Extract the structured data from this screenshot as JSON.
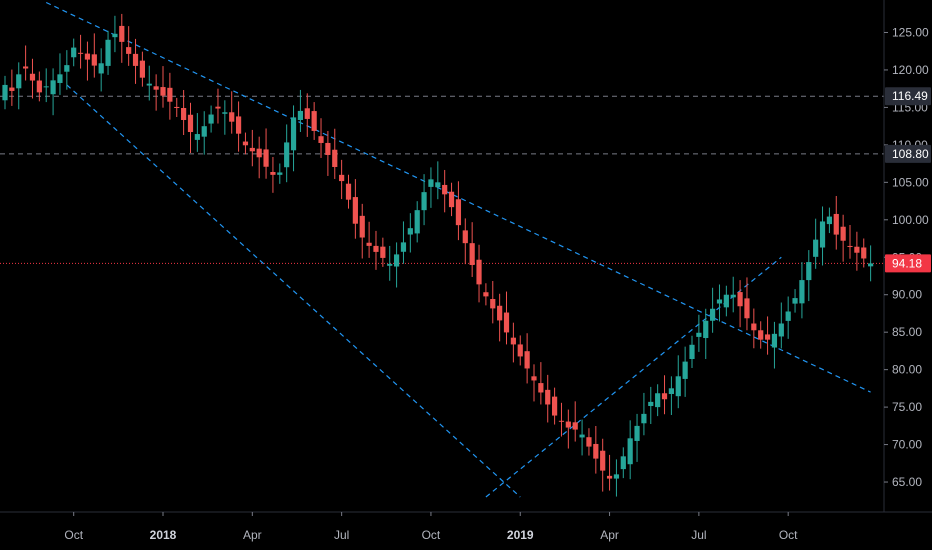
{
  "colors": {
    "background": "#000000",
    "up": "#26a69a",
    "down": "#ef5350",
    "trendline": "#2196f3",
    "level_line": "#787b86",
    "current_price_line": "#f23645",
    "axis_text": "#b2b5be"
  },
  "chart_data": {
    "type": "candlestick",
    "title": "",
    "xlabel": "",
    "ylabel": "",
    "ylim": [
      61,
      128
    ],
    "grid": false,
    "price_axis_ticks": [
      "65.00",
      "70.00",
      "75.00",
      "80.00",
      "85.00",
      "90.00",
      "95.00",
      "100.00",
      "105.00",
      "110.00",
      "115.00",
      "120.00",
      "125.00"
    ],
    "time_axis_ticks": [
      {
        "label": "Oct",
        "week": 11,
        "bold": false
      },
      {
        "label": "2018",
        "week": 24,
        "bold": true
      },
      {
        "label": "Apr",
        "week": 37,
        "bold": false
      },
      {
        "label": "Jul",
        "week": 50,
        "bold": false
      },
      {
        "label": "Oct",
        "week": 63,
        "bold": false
      },
      {
        "label": "2019",
        "week": 76,
        "bold": true
      },
      {
        "label": "Apr",
        "week": 89,
        "bold": false
      },
      {
        "label": "Jul",
        "week": 102,
        "bold": false
      },
      {
        "label": "Oct",
        "week": 115,
        "bold": false
      }
    ],
    "horizontal_levels": [
      {
        "value": 116.49,
        "label": "116.49"
      },
      {
        "value": 108.8,
        "label": "108.80"
      }
    ],
    "current_price": {
      "value": 94.18,
      "label": "94.18"
    },
    "trendlines": [
      {
        "from": [
          7,
          129
        ],
        "to": [
          127,
          77
        ]
      },
      {
        "from": [
          10,
          118
        ],
        "to": [
          76,
          63
        ]
      },
      {
        "from": [
          71,
          63
        ],
        "to": [
          114,
          95
        ]
      }
    ],
    "close_series": [
      118,
      117,
      121,
      119,
      117,
      118,
      119,
      120,
      123,
      122,
      121,
      120,
      124,
      125,
      123,
      121,
      119,
      118,
      117,
      116,
      115,
      113,
      111,
      112,
      114,
      115,
      114,
      112,
      110,
      109,
      108,
      106,
      106,
      111,
      115,
      114,
      112,
      110,
      108,
      106,
      103,
      99,
      97,
      96,
      95,
      94,
      96,
      98,
      101,
      104,
      106,
      104,
      102,
      99,
      96,
      92,
      90,
      88,
      86,
      84,
      82,
      80,
      78,
      76,
      74,
      73,
      72,
      72,
      70,
      68,
      66,
      65,
      68,
      71,
      73,
      75,
      77,
      76,
      78,
      80,
      83,
      85,
      87,
      89,
      90,
      90,
      88,
      86,
      84,
      84,
      85,
      87,
      89,
      92,
      95,
      99,
      101,
      98,
      97,
      96,
      95,
      94.18
    ],
    "series": [
      {
        "name": "",
        "x": [
          1,
          2,
          3,
          4,
          5,
          6,
          7,
          8,
          9,
          10,
          11,
          12,
          13,
          14,
          15,
          16,
          17,
          18,
          19,
          20,
          21,
          22,
          23,
          24,
          25,
          26,
          27,
          28,
          29,
          30,
          31,
          32,
          33,
          34,
          35,
          36,
          37,
          38,
          39,
          40,
          41,
          42,
          43,
          44,
          45,
          46,
          47,
          48,
          49,
          50,
          51,
          52,
          53,
          54,
          55,
          56,
          57,
          58,
          59,
          60,
          61,
          62,
          63,
          64,
          65,
          66,
          67,
          68,
          69,
          70,
          71,
          72,
          73,
          74,
          75,
          76,
          77,
          78,
          79,
          80,
          81,
          82,
          83,
          84,
          85,
          86,
          87,
          88,
          89,
          90,
          91,
          92,
          93,
          94,
          95,
          96,
          97,
          98,
          99,
          100,
          101,
          102,
          103,
          104,
          105,
          106,
          107,
          108,
          109,
          110,
          111,
          112,
          113,
          114,
          115,
          116,
          117,
          118,
          119,
          120,
          121,
          122,
          123,
          124,
          125,
          126,
          127
        ],
        "ohlc": [
          [
            116,
            119,
            113,
            117
          ],
          [
            117,
            121,
            115,
            119
          ],
          [
            119,
            123,
            116,
            118
          ],
          [
            118,
            120,
            116,
            117
          ],
          [
            117,
            119,
            115,
            116
          ],
          [
            116,
            118,
            114,
            117
          ],
          [
            117,
            120,
            116,
            119
          ],
          [
            119,
            122,
            117,
            121
          ],
          [
            121,
            124,
            119,
            122
          ],
          [
            122,
            124,
            119,
            120
          ],
          [
            120,
            122,
            117,
            118
          ],
          [
            118,
            121,
            116,
            120
          ],
          [
            120,
            125,
            119,
            124
          ],
          [
            124,
            127,
            122,
            125
          ],
          [
            125,
            126,
            121,
            122
          ],
          [
            122,
            123,
            119,
            120
          ],
          [
            120,
            121,
            116,
            117
          ],
          [
            117,
            119,
            114,
            115
          ],
          [
            115,
            117,
            112,
            113
          ],
          [
            113,
            115,
            110,
            111
          ],
          [
            111,
            113,
            109,
            112
          ],
          [
            112,
            115,
            111,
            114
          ],
          [
            114,
            116,
            112,
            115
          ],
          [
            115,
            117,
            113,
            116
          ],
          [
            116,
            117,
            113,
            114
          ],
          [
            114,
            115,
            110,
            111
          ],
          [
            111,
            113,
            106,
            107
          ],
          [
            107,
            110,
            102,
            104
          ],
          [
            104,
            108,
            102,
            106
          ],
          [
            106,
            109,
            104,
            108
          ],
          [
            108,
            113,
            107,
            111
          ],
          [
            111,
            116,
            109,
            114
          ],
          [
            114,
            117,
            111,
            112
          ],
          [
            112,
            114,
            108,
            109
          ],
          [
            109,
            111,
            104,
            105
          ],
          [
            105,
            107,
            100,
            101
          ],
          [
            101,
            103,
            96,
            98
          ],
          [
            98,
            100,
            94,
            96
          ],
          [
            96,
            98,
            92,
            94
          ],
          [
            94,
            97,
            93,
            96
          ],
          [
            96,
            99,
            94,
            97
          ],
          [
            97,
            100,
            95,
            99
          ],
          [
            99,
            103,
            98,
            102
          ],
          [
            102,
            106,
            100,
            104
          ],
          [
            104,
            108,
            101,
            103
          ],
          [
            103,
            105,
            99,
            100
          ],
          [
            100,
            102,
            97,
            98
          ],
          [
            98,
            99,
            94,
            95
          ],
          [
            95,
            96,
            89,
            91
          ],
          [
            91,
            93,
            87,
            89
          ],
          [
            89,
            91,
            86,
            88
          ],
          [
            88,
            90,
            84,
            85
          ],
          [
            85,
            87,
            81,
            82
          ],
          [
            82,
            84,
            77,
            79
          ],
          [
            79,
            81,
            73,
            75
          ],
          [
            75,
            78,
            73,
            77
          ],
          [
            77,
            79,
            75,
            76
          ],
          [
            76,
            77,
            72,
            74
          ],
          [
            74,
            76,
            71,
            72
          ],
          [
            72,
            73,
            68,
            70
          ],
          [
            70,
            72,
            66,
            68
          ],
          [
            68,
            71,
            65,
            66
          ],
          [
            66,
            70,
            65,
            69
          ],
          [
            69,
            72,
            67,
            71
          ],
          [
            71,
            74,
            69,
            73
          ],
          [
            73,
            76,
            71,
            75
          ],
          [
            75,
            78,
            73,
            77
          ],
          [
            77,
            79,
            74,
            76
          ],
          [
            76,
            79,
            74,
            78
          ],
          [
            78,
            82,
            77,
            81
          ],
          [
            81,
            84,
            79,
            83
          ],
          [
            83,
            85,
            80,
            82
          ],
          [
            82,
            84,
            80,
            83
          ],
          [
            83,
            86,
            82,
            85
          ],
          [
            85,
            88,
            83,
            87
          ],
          [
            87,
            90,
            85,
            89
          ],
          [
            89,
            91,
            87,
            90
          ],
          [
            90,
            91,
            87,
            88
          ],
          [
            88,
            89,
            84,
            85
          ],
          [
            85,
            86,
            82,
            83
          ],
          [
            83,
            84,
            81,
            82
          ],
          [
            82,
            84,
            81,
            83
          ],
          [
            83,
            86,
            82,
            85
          ],
          [
            85,
            88,
            84,
            87
          ],
          [
            87,
            91,
            86,
            90
          ],
          [
            90,
            94,
            88,
            92
          ],
          [
            92,
            97,
            90,
            95
          ],
          [
            95,
            102,
            94,
            100
          ],
          [
            100,
            103,
            98,
            99
          ],
          [
            99,
            100,
            96,
            97
          ],
          [
            97,
            99,
            95,
            96
          ],
          [
            96,
            98,
            94,
            95
          ],
          [
            95,
            96,
            93,
            94.18
          ]
        ]
      }
    ]
  }
}
